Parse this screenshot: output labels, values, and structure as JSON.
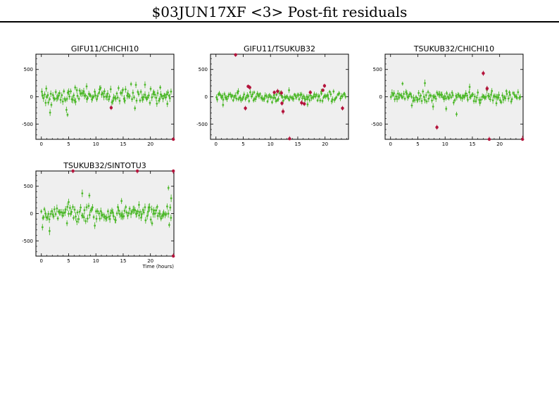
{
  "page_title": "$03JUN17XF <3> Post-fit residuals",
  "colors": {
    "good": "#4db82a",
    "flagged": "#b4143c",
    "panel_bg": "#efefef"
  },
  "chart_data": [
    {
      "type": "scatter",
      "title": "GIFU11/CHICHI10",
      "xlabel": "",
      "xlim": [
        -1,
        24.3
      ],
      "ylim": [
        -780,
        780
      ],
      "xticks": [
        0,
        5,
        10,
        15,
        20
      ],
      "yticks": [
        500,
        0,
        -500
      ],
      "series": [
        {
          "role": "good",
          "noise": 75,
          "seed": 11,
          "n": 130,
          "errbar": 55,
          "points": [
            [
              1.6,
              -290
            ],
            [
              4.6,
              -240
            ],
            [
              4.8,
              -330
            ],
            [
              8.3,
              190
            ],
            [
              15.2,
              -40
            ],
            [
              19.0,
              220
            ],
            [
              21.8,
              170
            ],
            [
              23.1,
              -130
            ],
            [
              0.9,
              150
            ],
            [
              6.2,
              170
            ]
          ]
        },
        {
          "role": "flagged",
          "noise": 0,
          "seed": 0,
          "n": 0,
          "errbar": 45,
          "points": [
            [
              12.8,
              -200
            ],
            [
              24.2,
              -790
            ]
          ]
        }
      ]
    },
    {
      "type": "scatter",
      "title": "GIFU11/TSUKUB32",
      "xlabel": "",
      "xlim": [
        -1,
        24.3
      ],
      "ylim": [
        -780,
        780
      ],
      "xticks": [
        0,
        5,
        10,
        15,
        20
      ],
      "yticks": [
        500,
        0,
        -500
      ],
      "series": [
        {
          "role": "good",
          "noise": 45,
          "seed": 23,
          "n": 130,
          "errbar": 45,
          "points": [
            [
              1.3,
              -150
            ],
            [
              4.1,
              100
            ],
            [
              7.0,
              80
            ],
            [
              11.0,
              -80
            ],
            [
              13.4,
              120
            ],
            [
              16.8,
              -140
            ],
            [
              19.3,
              90
            ]
          ]
        },
        {
          "role": "flagged",
          "noise": 0,
          "seed": 0,
          "n": 0,
          "errbar": 45,
          "points": [
            [
              3.6,
              770
            ],
            [
              5.4,
              -210
            ],
            [
              5.9,
              190
            ],
            [
              6.2,
              170
            ],
            [
              10.7,
              80
            ],
            [
              11.3,
              100
            ],
            [
              12.0,
              70
            ],
            [
              12.1,
              -120
            ],
            [
              12.3,
              -270
            ],
            [
              13.5,
              -770
            ],
            [
              15.7,
              -110
            ],
            [
              16.2,
              -130
            ],
            [
              17.3,
              80
            ],
            [
              19.6,
              120
            ],
            [
              19.9,
              200
            ],
            [
              23.2,
              -210
            ]
          ]
        }
      ]
    },
    {
      "type": "scatter",
      "title": "TSUKUB32/CHICHI10",
      "xlabel": "",
      "xlim": [
        -1,
        24.3
      ],
      "ylim": [
        -780,
        780
      ],
      "xticks": [
        0,
        5,
        10,
        15,
        20
      ],
      "yticks": [
        500,
        0,
        -500
      ],
      "series": [
        {
          "role": "good",
          "noise": 55,
          "seed": 37,
          "n": 130,
          "errbar": 50,
          "points": [
            [
              2.2,
              240
            ],
            [
              3.9,
              -160
            ],
            [
              6.3,
              250
            ],
            [
              7.8,
              -180
            ],
            [
              10.2,
              -220
            ],
            [
              12.1,
              -320
            ],
            [
              14.5,
              180
            ],
            [
              19.4,
              -120
            ]
          ]
        },
        {
          "role": "flagged",
          "noise": 0,
          "seed": 0,
          "n": 0,
          "errbar": 60,
          "points": [
            [
              8.5,
              -560
            ],
            [
              17.0,
              430
            ],
            [
              17.7,
              150
            ],
            [
              18.1,
              -780
            ],
            [
              24.2,
              -780
            ]
          ]
        }
      ]
    },
    {
      "type": "scatter",
      "title": "TSUKUB32/SINTOTU3",
      "xlabel": "Time (hours)",
      "xlim": [
        -1,
        24.3
      ],
      "ylim": [
        -780,
        780
      ],
      "xticks": [
        0,
        5,
        10,
        15,
        20
      ],
      "yticks": [
        500,
        0,
        -500
      ],
      "series": [
        {
          "role": "good",
          "noise": 70,
          "seed": 53,
          "n": 130,
          "errbar": 60,
          "points": [
            [
              0.2,
              -250
            ],
            [
              1.5,
              -320
            ],
            [
              7.5,
              370
            ],
            [
              8.8,
              330
            ],
            [
              14.7,
              230
            ],
            [
              17.9,
              160
            ],
            [
              20.3,
              -180
            ],
            [
              23.3,
              470
            ],
            [
              23.8,
              280
            ],
            [
              5.0,
              210
            ]
          ]
        },
        {
          "role": "flagged",
          "noise": 0,
          "seed": 0,
          "n": 0,
          "errbar": 45,
          "points": [
            [
              5.8,
              780
            ],
            [
              17.6,
              780
            ],
            [
              24.2,
              780
            ],
            [
              24.2,
              -780
            ]
          ]
        }
      ]
    }
  ]
}
